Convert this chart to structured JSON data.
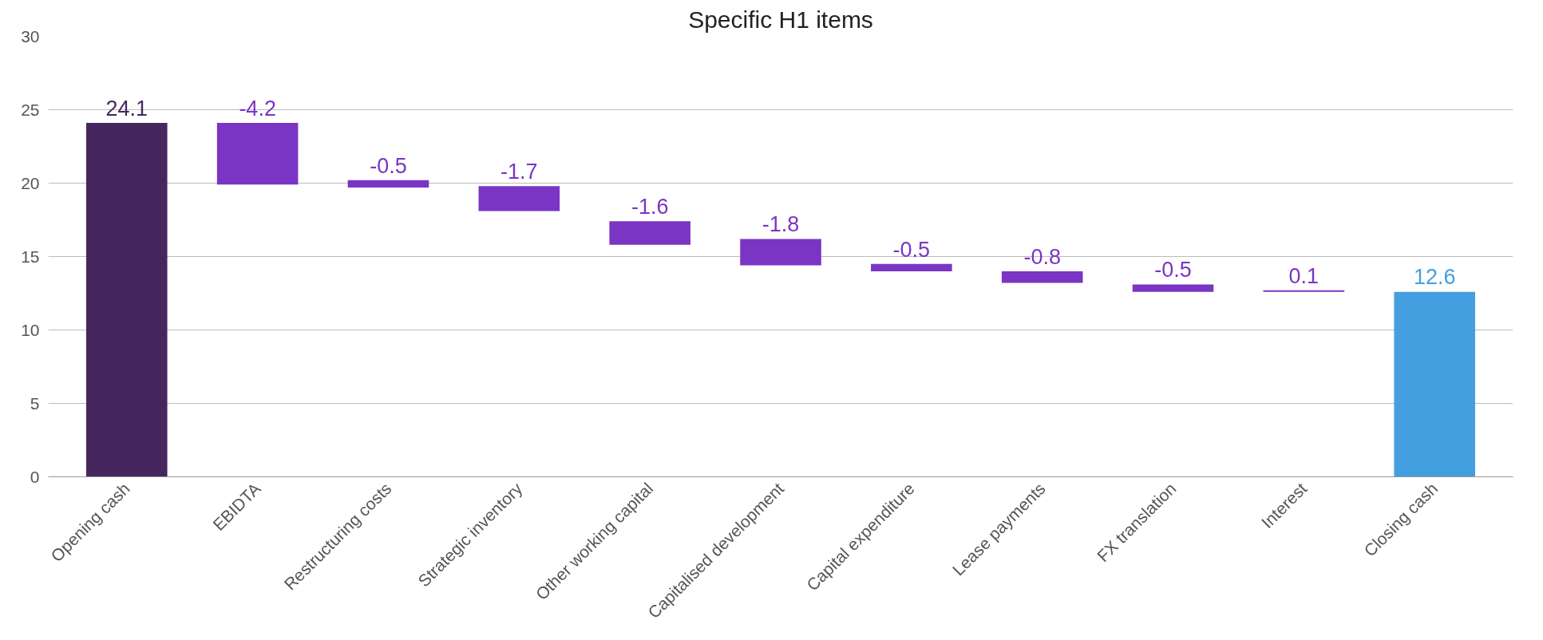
{
  "chart_data": {
    "type": "bar",
    "categories": [
      "Opening cash",
      "EBIDTA",
      "Restructuring costs",
      "Strategic inventory",
      "Other working capital",
      "Capitalised development",
      "Capital expenditure",
      "Lease payments",
      "FX translation",
      "Interest",
      "Closing cash"
    ],
    "values": [
      24.1,
      -4.2,
      -0.5,
      -1.7,
      -1.6,
      -1.8,
      -0.5,
      -0.8,
      -0.5,
      0.1,
      12.6
    ],
    "base": [
      0,
      24.1,
      20.2,
      19.8,
      17.4,
      16.2,
      14.5,
      14.0,
      13.1,
      12.6,
      0
    ],
    "colors": [
      "#45275e",
      "#7a35c4",
      "#7a35c4",
      "#7a35c4",
      "#7a35c4",
      "#7a35c4",
      "#7a35c4",
      "#7a35c4",
      "#7a35c4",
      "#7a35c4",
      "#449fe0"
    ],
    "data_labels": true,
    "annotations": [
      "Specific H1 items"
    ],
    "ylim": [
      0,
      30
    ],
    "yticks": [
      0,
      5,
      10,
      15,
      20,
      25,
      30
    ],
    "grid": "y"
  }
}
